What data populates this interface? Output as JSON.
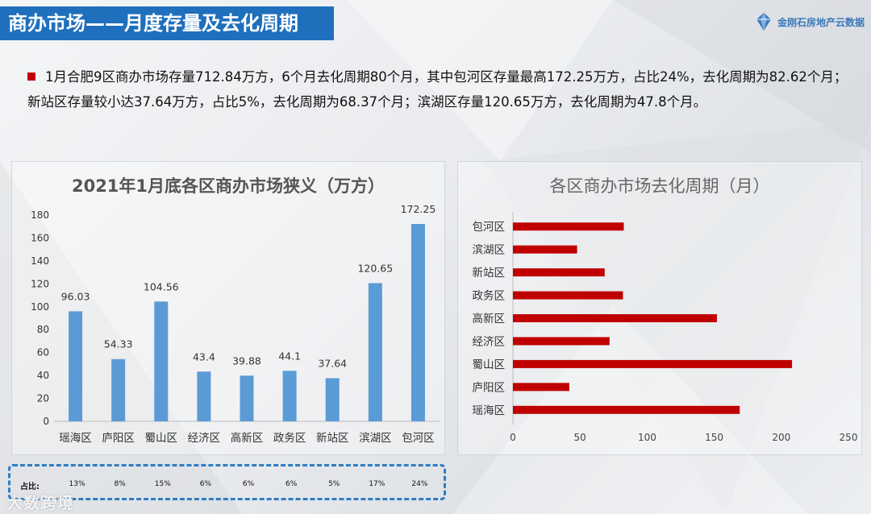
{
  "header": {
    "title": "商办市场——月度存量及去化周期",
    "logo_text": "金刚石房地产云数据"
  },
  "summary": {
    "text": "1月合肥9区商办市场存量712.84万方，6个月去化周期80个月，其中包河区存量最高172.25万方，占比24%，去化周期为82.62个月；新站区存量较小达37.64万方，占比5%，去化周期为68.37个月；滨湖区存量120.65万方，去化周期为47.8个月。"
  },
  "percentages": {
    "label": "占比:",
    "values": [
      "13%",
      "8%",
      "15%",
      "6%",
      "6%",
      "6%",
      "5%",
      "17%",
      "24%"
    ]
  },
  "watermark": "大数跨境",
  "colors": {
    "bar_blue": "#5b9bd5",
    "bar_red": "#c00000",
    "title_bg": "#1f6fbd"
  },
  "chart_data": [
    {
      "type": "bar",
      "title": "2021年1月底各区商办市场狭义（万方）",
      "categories": [
        "瑶海区",
        "庐阳区",
        "蜀山区",
        "经济区",
        "高新区",
        "政务区",
        "新站区",
        "滨湖区",
        "包河区"
      ],
      "values": [
        96.03,
        54.33,
        104.56,
        43.4,
        39.88,
        44.1,
        37.64,
        120.65,
        172.25
      ],
      "data_labels": [
        "96.03",
        "54.33",
        "104.56",
        "43.4",
        "39.88",
        "44.1",
        "37.64",
        "120.65",
        "172.25"
      ],
      "ylim": [
        0,
        180
      ],
      "yticks": [
        0,
        20,
        40,
        60,
        80,
        100,
        120,
        140,
        160,
        180
      ],
      "grid": false
    },
    {
      "type": "bar",
      "orientation": "horizontal",
      "title": "各区商办市场去化周期（月）",
      "categories": [
        "包河区",
        "滨湖区",
        "新站区",
        "政务区",
        "高新区",
        "经济区",
        "蜀山区",
        "庐阳区",
        "瑶海区"
      ],
      "values": [
        82.62,
        47.8,
        68.37,
        82,
        152,
        72,
        208,
        42,
        169
      ],
      "xlim": [
        0,
        250
      ],
      "xticks": [
        0,
        50,
        100,
        150,
        200,
        250
      ],
      "grid": false
    }
  ]
}
